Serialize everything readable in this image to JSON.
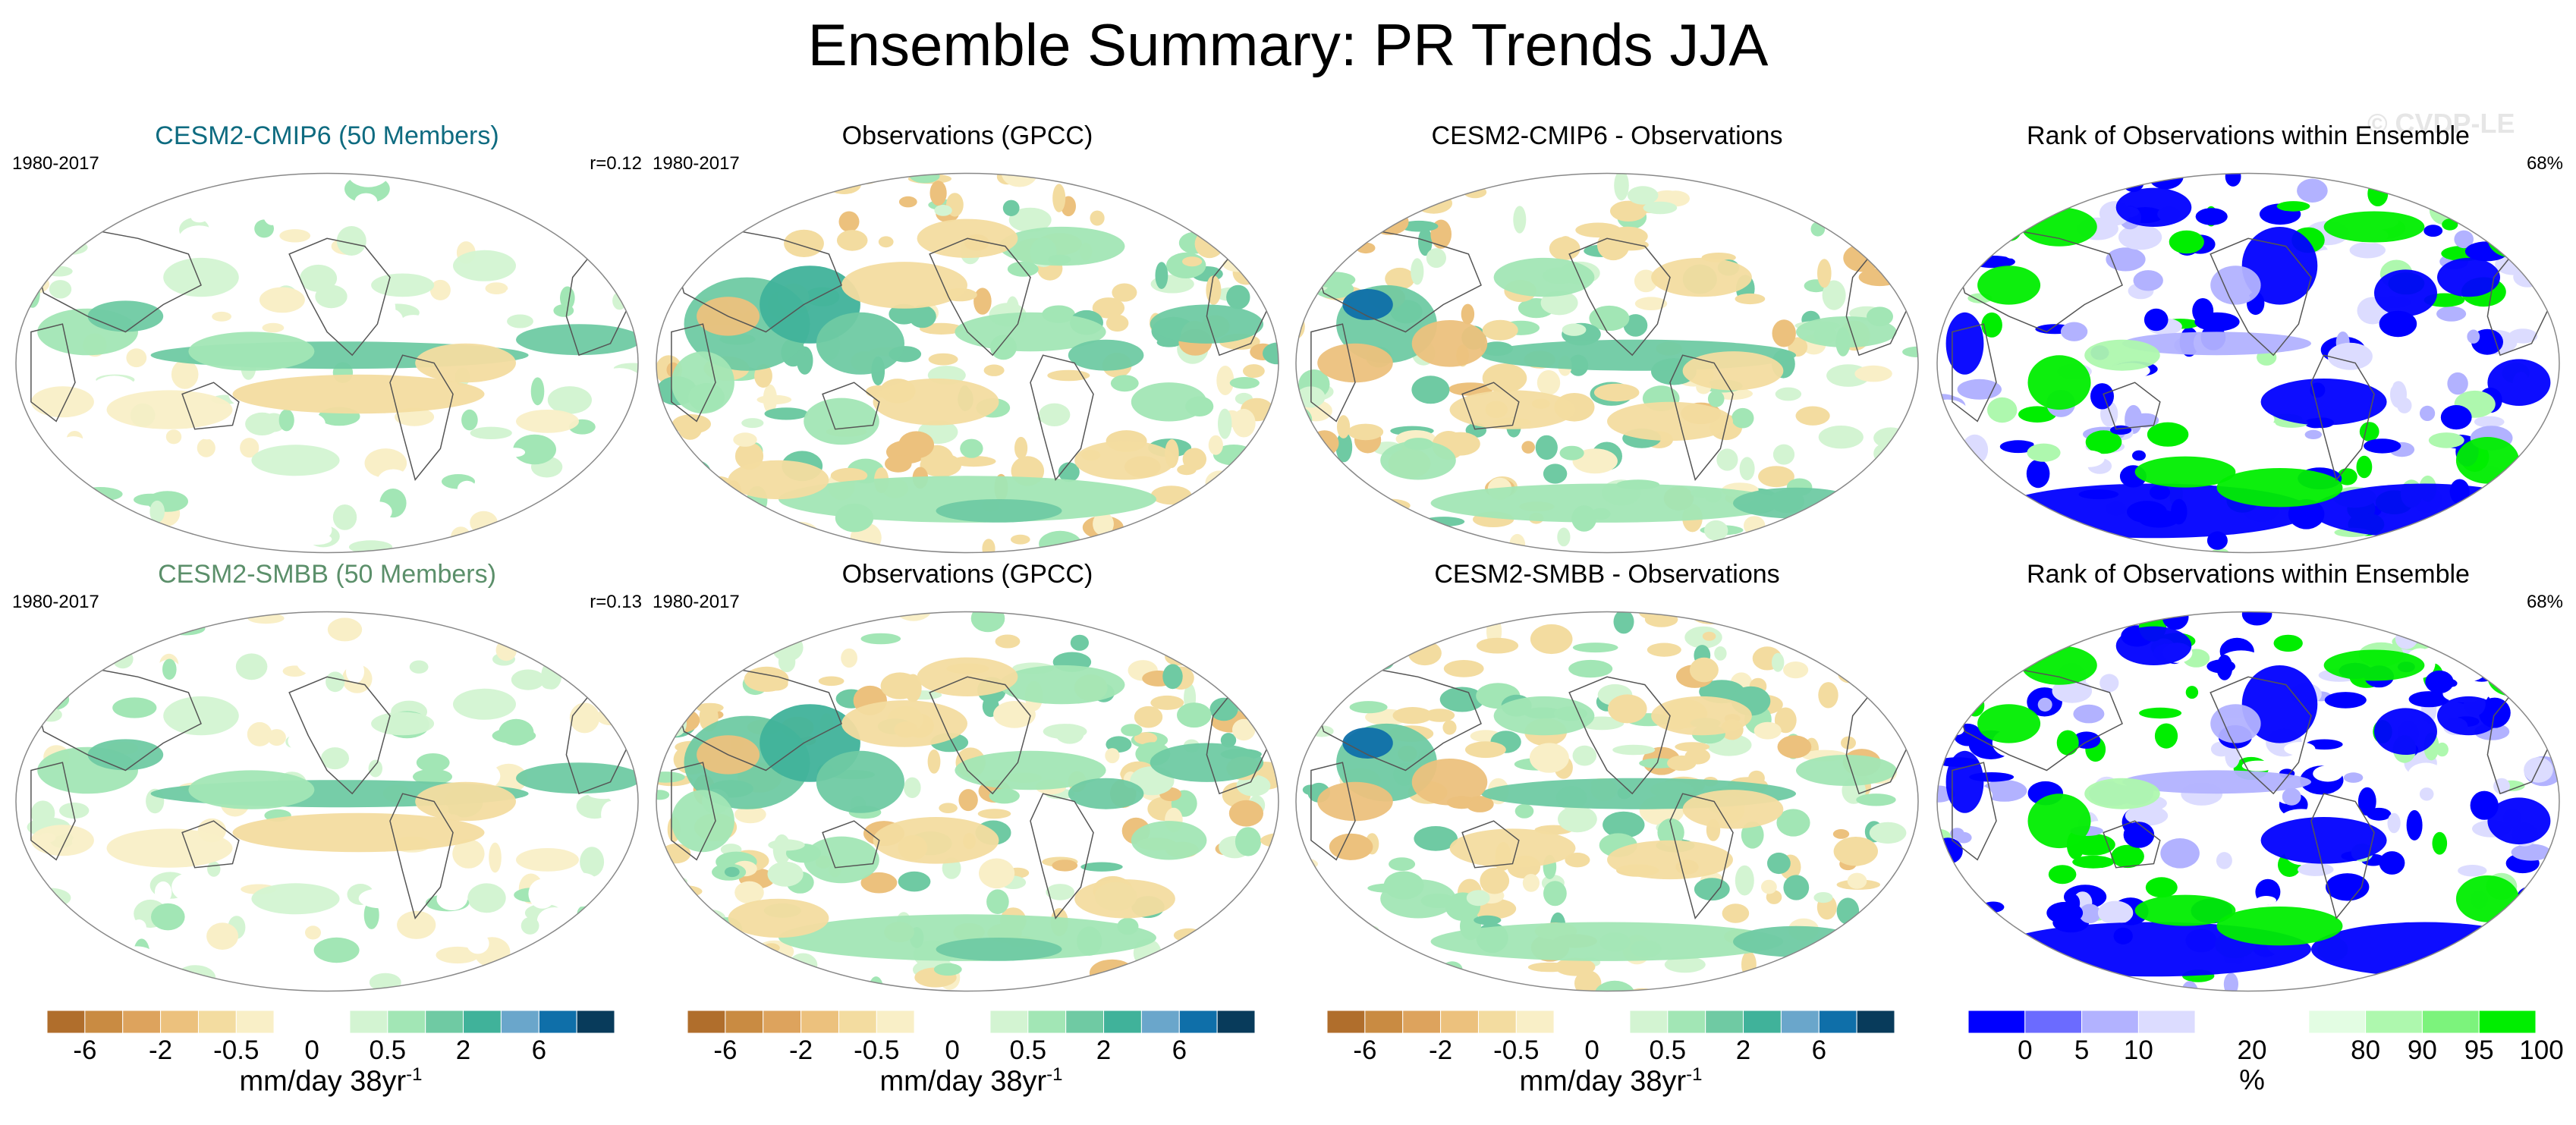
{
  "page": {
    "title": "Ensemble Summary: PR Trends JJA",
    "watermark": "© CVDP-LE"
  },
  "colors": {
    "trend_palette": [
      "#b06e2c",
      "#c98b42",
      "#dda35d",
      "#ecc17d",
      "#f3dca0",
      "#f9efc7",
      "#ffffff",
      "#ffffff",
      "#d3f4d2",
      "#a2e6b5",
      "#6fcaa3",
      "#40b29a",
      "#6aa6cb",
      "#0f6fa9",
      "#083b5b"
    ],
    "rank_palette": [
      "#0000ff",
      "#6b6bff",
      "#b2b2ff",
      "#dcdcff",
      "#ffffff",
      "#ffffff",
      "#e3fde3",
      "#aef8ae",
      "#7cf37c",
      "#00ee00"
    ],
    "title_cmip6": "#0e6b80",
    "title_smbb": "#5b8f6a"
  },
  "panels": [
    {
      "title": "CESM2-CMIP6 (50 Members)",
      "period": "1980-2017",
      "corner": "r=0.12",
      "kind": "model"
    },
    {
      "title": "Observations (GPCC)",
      "period": "1980-2017",
      "corner": "",
      "kind": "obs"
    },
    {
      "title": "CESM2-CMIP6 - Observations",
      "period": "",
      "corner": "",
      "kind": "diff"
    },
    {
      "title": "Rank of Observations within Ensemble",
      "period": "",
      "corner": "68%",
      "kind": "rank"
    },
    {
      "title": "CESM2-SMBB (50 Members)",
      "period": "1980-2017",
      "corner": "r=0.13",
      "kind": "model"
    },
    {
      "title": "Observations (GPCC)",
      "period": "1980-2017",
      "corner": "",
      "kind": "obs"
    },
    {
      "title": "CESM2-SMBB - Observations",
      "period": "",
      "corner": "",
      "kind": "diff"
    },
    {
      "title": "Rank of Observations within Ensemble",
      "period": "",
      "corner": "68%",
      "kind": "rank"
    }
  ],
  "colorbars": {
    "trend": {
      "ticks": [
        "-6",
        "-2",
        "-0.5",
        "0",
        "0.5",
        "2",
        "6"
      ],
      "label": "mm/day 38yr",
      "label_sup": "-1"
    },
    "rank": {
      "ticks": [
        "0",
        "5",
        "10",
        "20",
        "80",
        "90",
        "95",
        "100"
      ],
      "label": "%"
    }
  },
  "chart_data": [
    {
      "type": "heatmap",
      "title": "CESM2-CMIP6 (50 Members)",
      "period": "1980-2017",
      "pattern_correlation": 0.12,
      "units": "mm/day 38yr-1",
      "levels": [
        -6,
        -4,
        -2,
        -1,
        -0.5,
        -0.25,
        0,
        0.25,
        0.5,
        1,
        2,
        4,
        6
      ],
      "notable_features": [
        "positive band along equatorial Pacific ITCZ",
        "positive tropical Atlantic band",
        "weak negative trends in subtropics"
      ]
    },
    {
      "type": "heatmap",
      "title": "Observations (GPCC)",
      "period": "1980-2017",
      "units": "mm/day 38yr-1",
      "levels": [
        -6,
        -4,
        -2,
        -1,
        -0.5,
        -0.25,
        0,
        0.25,
        0.5,
        1,
        2,
        4,
        6
      ]
    },
    {
      "type": "heatmap",
      "title": "CESM2-CMIP6 - Observations",
      "units": "mm/day 38yr-1",
      "levels": [
        -6,
        -4,
        -2,
        -1,
        -0.5,
        -0.25,
        0,
        0.25,
        0.5,
        1,
        2,
        4,
        6
      ]
    },
    {
      "type": "heatmap",
      "title": "Rank of Observations within Ensemble",
      "percent_bounded": "68%",
      "units": "%",
      "levels": [
        0,
        5,
        10,
        20,
        80,
        90,
        95,
        100
      ]
    },
    {
      "type": "heatmap",
      "title": "CESM2-SMBB (50 Members)",
      "period": "1980-2017",
      "pattern_correlation": 0.13,
      "units": "mm/day 38yr-1",
      "levels": [
        -6,
        -4,
        -2,
        -1,
        -0.5,
        -0.25,
        0,
        0.25,
        0.5,
        1,
        2,
        4,
        6
      ]
    },
    {
      "type": "heatmap",
      "title": "Observations (GPCC)",
      "period": "1980-2017",
      "units": "mm/day 38yr-1",
      "levels": [
        -6,
        -4,
        -2,
        -1,
        -0.5,
        -0.25,
        0,
        0.25,
        0.5,
        1,
        2,
        4,
        6
      ]
    },
    {
      "type": "heatmap",
      "title": "CESM2-SMBB - Observations",
      "units": "mm/day 38yr-1",
      "levels": [
        -6,
        -4,
        -2,
        -1,
        -0.5,
        -0.25,
        0,
        0.25,
        0.5,
        1,
        2,
        4,
        6
      ]
    },
    {
      "type": "heatmap",
      "title": "Rank of Observations within Ensemble",
      "percent_bounded": "68%",
      "units": "%",
      "levels": [
        0,
        5,
        10,
        20,
        80,
        90,
        95,
        100
      ]
    }
  ]
}
